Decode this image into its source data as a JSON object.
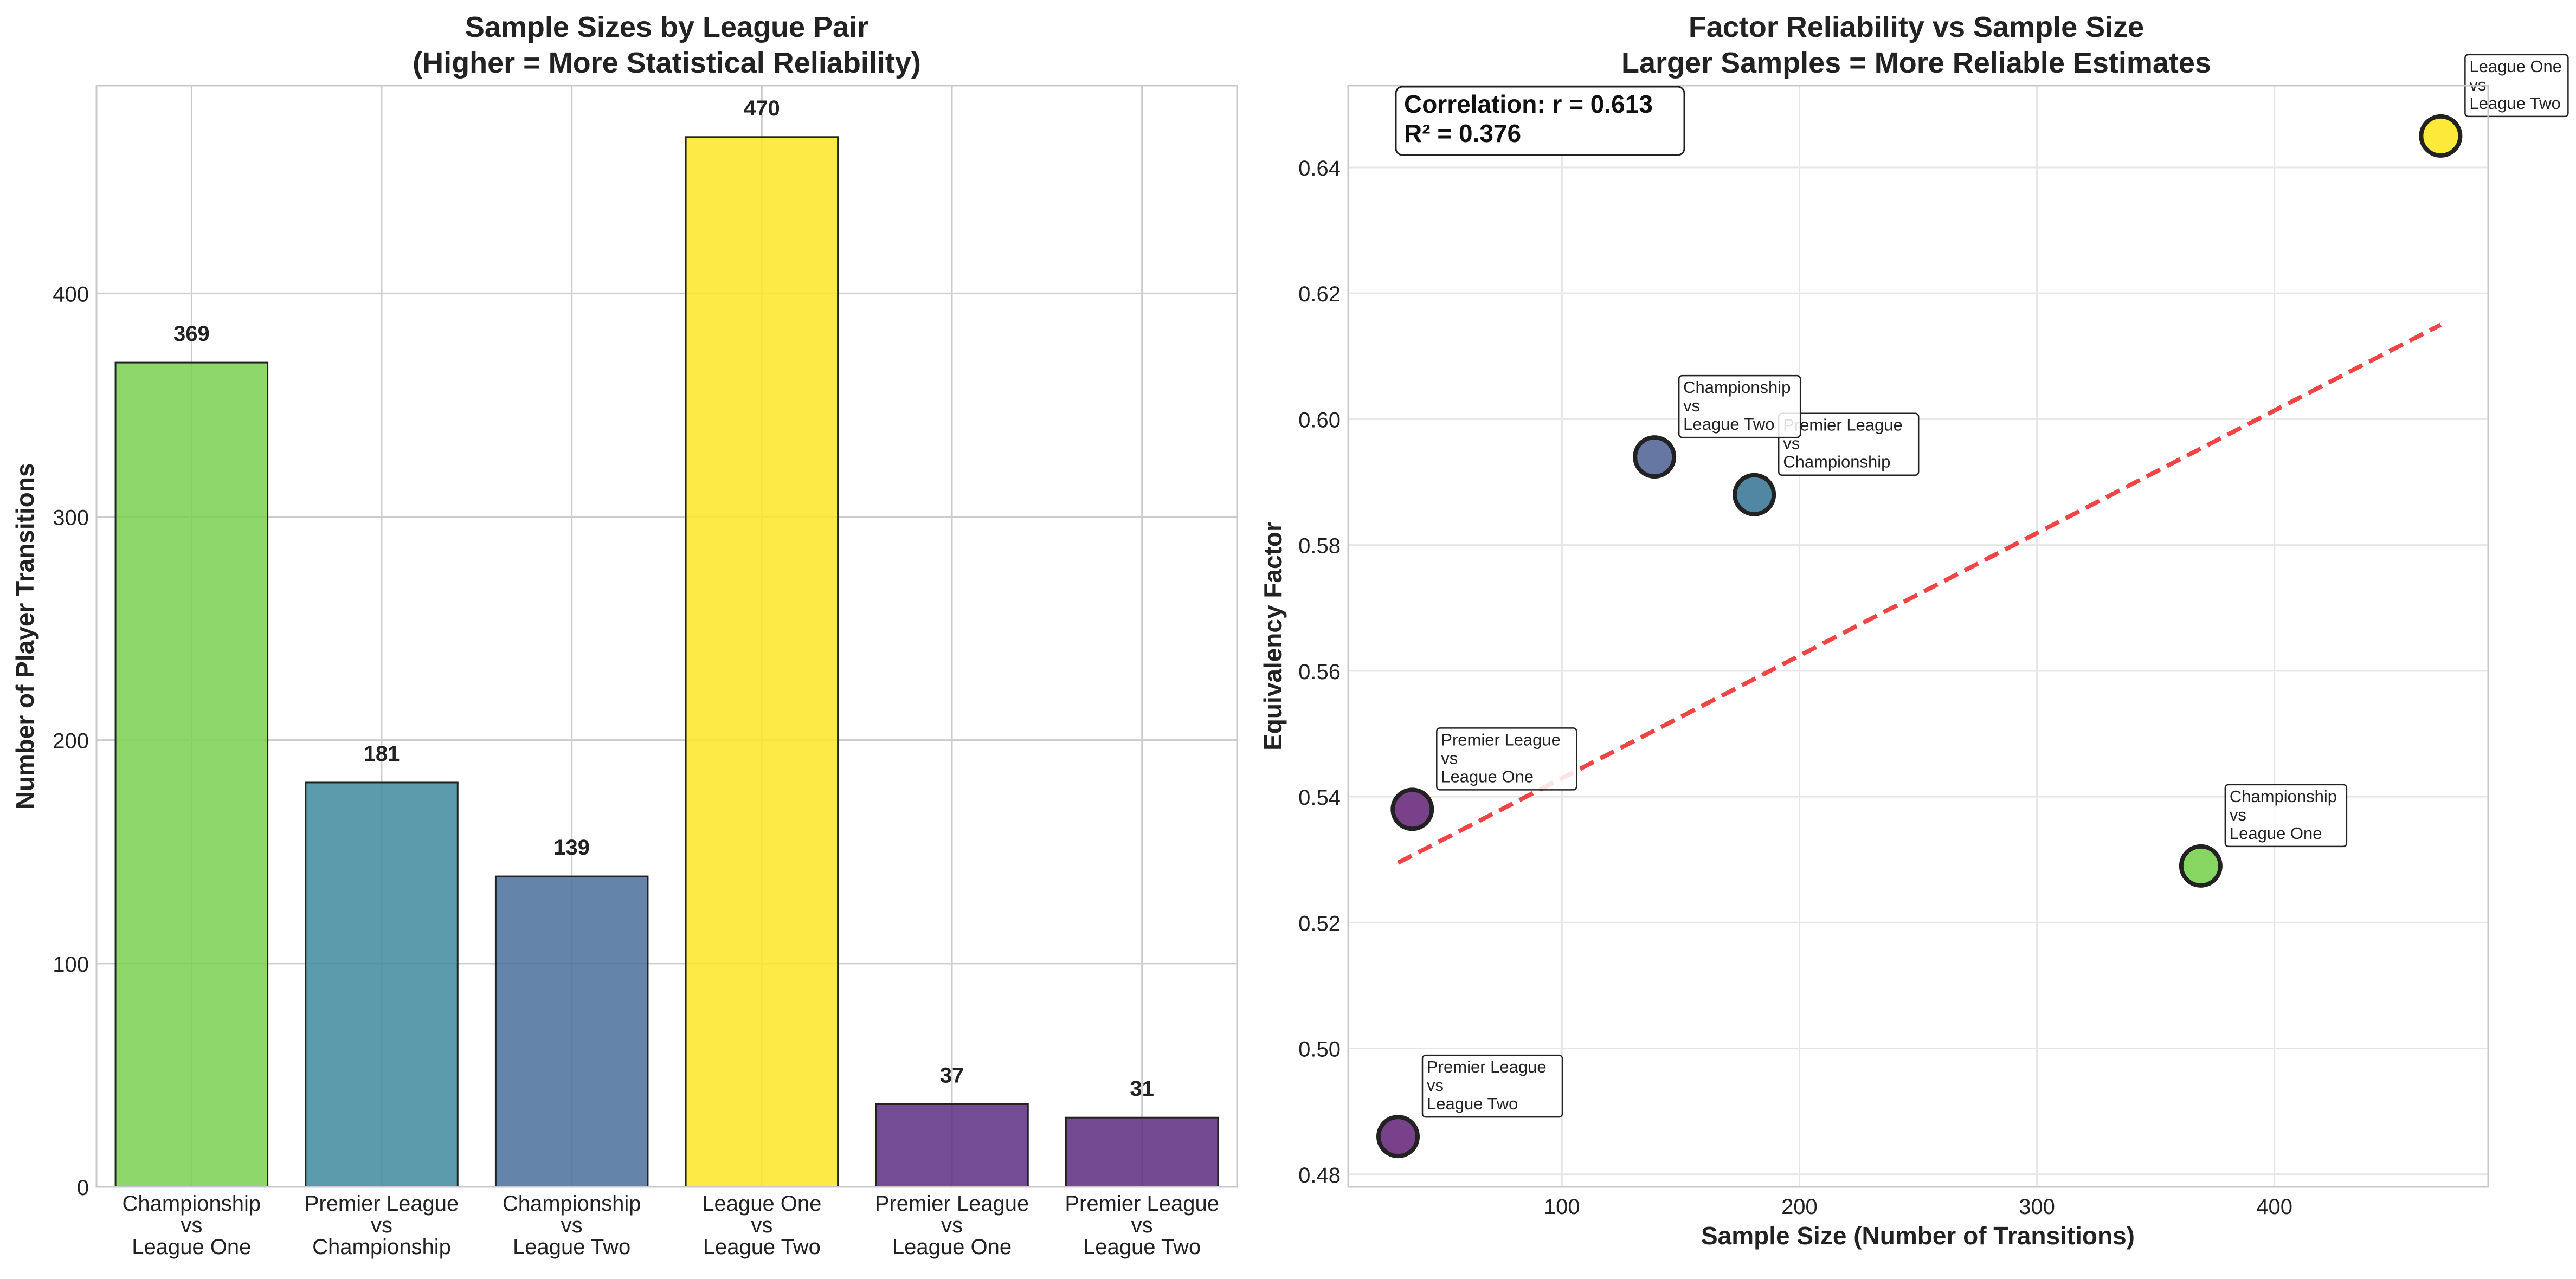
{
  "chart_data": [
    {
      "type": "bar",
      "title": "Sample Sizes by League Pair",
      "subtitle": "(Higher = More Statistical Reliability)",
      "xlabel": "",
      "ylabel": "Number of Player Transitions",
      "ylim": [
        0,
        493
      ],
      "yticks": [
        0,
        100,
        200,
        300,
        400
      ],
      "grid": true,
      "categories": [
        "Championship\nvs\nLeague One",
        "Premier League\nvs\nChampionship",
        "Championship\nvs\nLeague Two",
        "League One\nvs\nLeague Two",
        "Premier League\nvs\nLeague One",
        "Premier League\nvs\nLeague Two"
      ],
      "values": [
        369,
        181,
        139,
        470,
        37,
        31
      ],
      "data_labels": [
        "369",
        "181",
        "139",
        "470",
        "37",
        "31"
      ],
      "colors": [
        "#7ad151",
        "#3f8a9c",
        "#4a6f9a",
        "#fde725",
        "#5a2d82",
        "#5c2a80"
      ]
    },
    {
      "type": "scatter",
      "title": "Factor Reliability vs Sample Size",
      "subtitle": "Larger Samples = More Reliable Estimates",
      "xlabel": "Sample Size (Number of Transitions)",
      "ylabel": "Equivalency Factor",
      "xlim": [
        10,
        490
      ],
      "ylim": [
        0.478,
        0.653
      ],
      "xticks": [
        100,
        200,
        300,
        400
      ],
      "yticks": [
        0.48,
        0.5,
        0.52,
        0.54,
        0.56,
        0.58,
        0.6,
        0.62,
        0.64
      ],
      "xtick_labels": [
        "100",
        "200",
        "300",
        "400"
      ],
      "ytick_labels": [
        "0.48",
        "0.50",
        "0.52",
        "0.54",
        "0.56",
        "0.58",
        "0.60",
        "0.62",
        "0.64"
      ],
      "grid": true,
      "stats_box": [
        "Correlation: r = 0.613",
        "R² = 0.376"
      ],
      "points": [
        {
          "x": 369,
          "y": 0.529,
          "label": "Championship\nvs\nLeague One",
          "color": "#7ad151"
        },
        {
          "x": 181,
          "y": 0.588,
          "label": "Premier League\nvs\nChampionship",
          "color": "#3f7a9a"
        },
        {
          "x": 139,
          "y": 0.594,
          "label": "Championship\nvs\nLeague Two",
          "color": "#56689a"
        },
        {
          "x": 470,
          "y": 0.645,
          "label": "League One\nvs\nLeague Two",
          "color": "#fde725"
        },
        {
          "x": 37,
          "y": 0.538,
          "label": "Premier League\nvs\nLeague One",
          "color": "#6a2c7c"
        },
        {
          "x": 31,
          "y": 0.486,
          "label": "Premier League\nvs\nLeague Two",
          "color": "#6a2c7c"
        }
      ],
      "trendline": {
        "x": [
          31,
          470
        ],
        "y": [
          0.5295,
          0.615
        ],
        "color": "#f03030",
        "style": "dashed"
      }
    }
  ]
}
